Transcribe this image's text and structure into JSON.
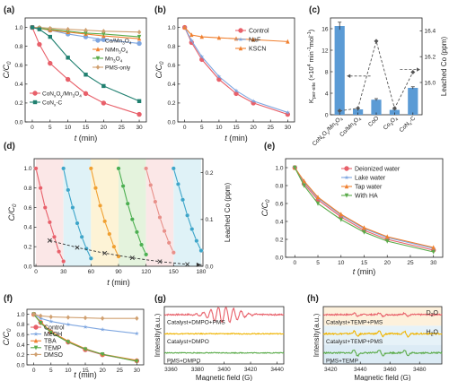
{
  "figure": {
    "panels": [
      "(a)",
      "(b)",
      "(c)",
      "(d)",
      "(e)",
      "(f)",
      "(g)",
      "(h)"
    ]
  },
  "chart_data": [
    {
      "id": "a",
      "type": "line",
      "label": "(a)",
      "xlabel": "t (min)",
      "ylabel": "C/C0",
      "xlim": [
        -2,
        32
      ],
      "ylim": [
        0,
        1.1
      ],
      "xticks": [
        0,
        5,
        10,
        15,
        20,
        25,
        30
      ],
      "yticks": [
        0,
        0.2,
        0.4,
        0.6,
        0.8,
        1.0
      ],
      "x": [
        0,
        2,
        5,
        10,
        15,
        20,
        30
      ],
      "legend": "right",
      "series": [
        {
          "name": "Co/Mn3O4",
          "legend_sub": "3 4",
          "color": "#7ea6e0",
          "marker": "circle",
          "values": [
            1.0,
            0.99,
            0.97,
            0.93,
            0.9,
            0.87,
            0.83
          ]
        },
        {
          "name": "NiMn3O4",
          "legend_sub": "3 4",
          "color": "#f08030",
          "marker": "triangle",
          "values": [
            1.0,
            0.99,
            0.97,
            0.95,
            0.93,
            0.91,
            0.88
          ]
        },
        {
          "name": "Mn3O4",
          "legend_sub": "3 4",
          "color": "#5aab4a",
          "marker": "triangle-down",
          "values": [
            1.0,
            0.99,
            0.98,
            0.96,
            0.94,
            0.93,
            0.9
          ]
        },
        {
          "name": "PMS-only",
          "color": "#d0a070",
          "marker": "diamond",
          "values": [
            1.0,
            1.0,
            0.99,
            0.98,
            0.97,
            0.96,
            0.95
          ]
        },
        {
          "name": "CoNxOy/Mn3O4",
          "color": "#e8606a",
          "marker": "circle",
          "values": [
            1.0,
            0.82,
            0.62,
            0.45,
            0.3,
            0.2,
            0.08
          ]
        },
        {
          "name": "CoNx-C",
          "color": "#208070",
          "marker": "square",
          "values": [
            1.0,
            0.98,
            0.9,
            0.68,
            0.5,
            0.38,
            0.22
          ]
        }
      ]
    },
    {
      "id": "b",
      "type": "line",
      "label": "(b)",
      "xlabel": "t (min)",
      "ylabel": "C/C0",
      "xlim": [
        -2,
        32
      ],
      "ylim": [
        0,
        1.1
      ],
      "xticks": [
        0,
        5,
        10,
        15,
        20,
        25,
        30
      ],
      "yticks": [
        0,
        0.2,
        0.4,
        0.6,
        0.8,
        1.0
      ],
      "x": [
        0,
        2,
        5,
        10,
        15,
        20,
        30
      ],
      "legend": "top-right",
      "series": [
        {
          "name": "Control",
          "color": "#e8606a",
          "marker": "circle",
          "values": [
            1.0,
            0.84,
            0.66,
            0.45,
            0.3,
            0.2,
            0.08
          ]
        },
        {
          "name": "NaF",
          "color": "#7ea6e0",
          "marker": "star",
          "values": [
            1.0,
            0.86,
            0.69,
            0.48,
            0.33,
            0.22,
            0.1
          ]
        },
        {
          "name": "KSCN",
          "color": "#f08030",
          "marker": "triangle",
          "values": [
            1.0,
            0.92,
            0.9,
            0.89,
            0.88,
            0.87,
            0.85
          ]
        }
      ]
    },
    {
      "id": "c",
      "type": "bar",
      "label": "(c)",
      "ylabel": "k_per-site (×10^4 min^-1 mol^-1)",
      "y2label": "Leached Co (ppm)",
      "categories": [
        "CoNxOy/Mn3O4",
        "Co/Mn3O4",
        "CoO",
        "Co3O4",
        "CoNx-C"
      ],
      "category_labels": [
        [
          "CoN",
          "x",
          "O",
          "y",
          "/Mn",
          "3",
          "O",
          "4"
        ],
        [
          "Co/Mn",
          "3",
          "O",
          "4"
        ],
        [
          "CoO"
        ],
        [
          "Co",
          "3",
          "O",
          "4"
        ],
        [
          "CoN",
          "x",
          "-C"
        ]
      ],
      "values": [
        16.5,
        1.0,
        2.8,
        0.9,
        5.0
      ],
      "errors": [
        0.7,
        0.25,
        0.2,
        0.1,
        0.2
      ],
      "ylim": [
        0,
        18
      ],
      "yticks": [
        0,
        4,
        8,
        12,
        16
      ],
      "y2lim": [
        15.75,
        16.5
      ],
      "y2ticks": [
        16.0,
        16.2,
        16.4
      ],
      "leached_co": [
        15.78,
        15.8,
        16.32,
        15.8,
        16.08
      ],
      "bar_color": "#5b9bd5"
    },
    {
      "id": "d",
      "type": "line",
      "label": "(d)",
      "xlabel": "t (min)",
      "ylabel": "C/C0",
      "y2label": "Leached Co (ppm)",
      "xlim": [
        -2,
        182
      ],
      "ylim": [
        0,
        1.1
      ],
      "xticks": [
        0,
        30,
        60,
        90,
        120,
        150,
        180
      ],
      "yticks": [
        0,
        0.2,
        0.4,
        0.6,
        0.8,
        1.0
      ],
      "y2lim": [
        0,
        0.23
      ],
      "y2ticks": [
        0.0,
        0.1,
        0.2
      ],
      "cycles": [
        {
          "x": [
            0,
            5,
            10,
            15,
            20,
            25,
            30
          ],
          "values": [
            1.0,
            0.8,
            0.6,
            0.45,
            0.3,
            0.15,
            0.05
          ],
          "color": "#e8606a"
        },
        {
          "x": [
            30,
            35,
            40,
            45,
            50,
            55,
            60
          ],
          "values": [
            1.0,
            0.78,
            0.6,
            0.44,
            0.3,
            0.18,
            0.08
          ],
          "color": "#3da5c9"
        },
        {
          "x": [
            60,
            65,
            70,
            75,
            80,
            85,
            90
          ],
          "values": [
            1.0,
            0.8,
            0.62,
            0.46,
            0.33,
            0.2,
            0.1
          ],
          "color": "#f0a030"
        },
        {
          "x": [
            90,
            95,
            100,
            105,
            110,
            115,
            120
          ],
          "values": [
            1.0,
            0.82,
            0.64,
            0.48,
            0.35,
            0.22,
            0.12
          ],
          "color": "#4caf50"
        },
        {
          "x": [
            120,
            125,
            130,
            135,
            140,
            145,
            150
          ],
          "values": [
            1.0,
            0.83,
            0.66,
            0.5,
            0.36,
            0.24,
            0.14
          ],
          "color": "#e8908a"
        },
        {
          "x": [
            150,
            155,
            160,
            165,
            170,
            175,
            180
          ],
          "values": [
            1.0,
            0.84,
            0.68,
            0.52,
            0.38,
            0.26,
            0.16
          ],
          "color": "#3da5c9"
        }
      ],
      "leached_co": {
        "x": [
          15,
          45,
          75,
          105,
          135,
          165
        ],
        "values": [
          0.055,
          0.04,
          0.028,
          0.018,
          0.01,
          0.004
        ]
      },
      "band_colors": [
        "#fbe7e7",
        "#dff2f7",
        "#fdf3d6",
        "#e4f3dd",
        "#fbe7e7",
        "#dff2f7"
      ]
    },
    {
      "id": "e",
      "type": "line",
      "label": "(e)",
      "xlabel": "t (min)",
      "ylabel": "C/C0",
      "xlim": [
        -2,
        32
      ],
      "ylim": [
        0,
        1.1
      ],
      "xticks": [
        0,
        5,
        10,
        15,
        20,
        25,
        30
      ],
      "yticks": [
        0,
        0.2,
        0.4,
        0.6,
        0.8,
        1.0
      ],
      "x": [
        0,
        2,
        5,
        10,
        15,
        20,
        30
      ],
      "legend": "top-right",
      "series": [
        {
          "name": "Deionized water",
          "color": "#e8606a",
          "marker": "circle",
          "values": [
            1.0,
            0.82,
            0.64,
            0.45,
            0.3,
            0.2,
            0.08
          ]
        },
        {
          "name": "Lake water",
          "color": "#7ea6e0",
          "marker": "star",
          "values": [
            1.0,
            0.84,
            0.66,
            0.47,
            0.32,
            0.22,
            0.1
          ]
        },
        {
          "name": "Tap water",
          "color": "#f08030",
          "marker": "triangle",
          "values": [
            1.0,
            0.85,
            0.67,
            0.48,
            0.33,
            0.23,
            0.11
          ]
        },
        {
          "name": "With HA",
          "color": "#5aab4a",
          "marker": "triangle-down",
          "values": [
            1.0,
            0.8,
            0.6,
            0.42,
            0.28,
            0.18,
            0.06
          ]
        }
      ]
    },
    {
      "id": "f",
      "type": "line",
      "label": "(f)",
      "xlabel": "t (min)",
      "ylabel": "C/C0",
      "xlim": [
        -2,
        32
      ],
      "ylim": [
        0,
        1.1
      ],
      "xticks": [
        0,
        5,
        10,
        15,
        20,
        25,
        30
      ],
      "yticks": [
        0,
        0.2,
        0.4,
        0.6,
        0.8,
        1.0
      ],
      "x": [
        0,
        2,
        5,
        10,
        15,
        20,
        30
      ],
      "legend": "bottom-left",
      "series": [
        {
          "name": "Control",
          "color": "#e8606a",
          "marker": "circle",
          "values": [
            1.0,
            0.84,
            0.65,
            0.45,
            0.3,
            0.2,
            0.08
          ]
        },
        {
          "name": "MeOH",
          "color": "#7ea6e0",
          "marker": "star",
          "values": [
            1.0,
            0.92,
            0.86,
            0.8,
            0.75,
            0.7,
            0.62
          ]
        },
        {
          "name": "TBA",
          "color": "#f08030",
          "marker": "triangle",
          "values": [
            1.0,
            0.85,
            0.66,
            0.47,
            0.32,
            0.21,
            0.09
          ]
        },
        {
          "name": "TEMP",
          "color": "#5aab4a",
          "marker": "triangle-down",
          "values": [
            1.0,
            0.83,
            0.64,
            0.45,
            0.31,
            0.21,
            0.07
          ]
        },
        {
          "name": "DMSO",
          "color": "#d0a070",
          "marker": "diamond",
          "values": [
            1.0,
            0.97,
            0.95,
            0.94,
            0.93,
            0.92,
            0.92
          ]
        }
      ]
    },
    {
      "id": "g",
      "type": "line",
      "label": "(g)",
      "xlabel": "Magnetic field (G)",
      "ylabel": "Intensity(a.u.)",
      "xlim": [
        3355,
        3445
      ],
      "xticks": [
        3360,
        3380,
        3400,
        3420,
        3440
      ],
      "traces": [
        {
          "name": "Catalyst+DMPO+PMS",
          "color": "#e8606a",
          "amplitude": 1.0,
          "kind": "dmpo-oh"
        },
        {
          "name": "Catalyst+DMPO",
          "color": "#f0b400",
          "amplitude": 0.2,
          "kind": "noise"
        },
        {
          "name": "PMS+DMPO",
          "color": "#5aab4a",
          "amplitude": 0.2,
          "kind": "noise"
        }
      ]
    },
    {
      "id": "h",
      "type": "line",
      "label": "(h)",
      "xlabel": "Magnetic field (G)",
      "ylabel": "Intensity(a.u.)",
      "xlim": [
        3415,
        3495
      ],
      "xticks": [
        3420,
        3440,
        3460,
        3480
      ],
      "annotations": [
        "D2O",
        "H2O"
      ],
      "annotation_parts": [
        [
          "D",
          "2",
          "O"
        ],
        [
          "H",
          "2",
          "O"
        ]
      ],
      "traces": [
        {
          "name": "Catalyst+TEMP+PMS",
          "color": "#e8606a",
          "amplitude": 0.5,
          "kind": "temp",
          "background": "#fdf1dc"
        },
        {
          "name": "Catalyst+TEMP+PMS",
          "color": "#f0b400",
          "amplitude": 0.75,
          "kind": "temp",
          "background": "#e6f2f8"
        },
        {
          "name": "PMS+TEMP",
          "color": "#5aab4a",
          "amplitude": 0.85,
          "kind": "temp",
          "background": "#dcebf5"
        }
      ]
    }
  ]
}
